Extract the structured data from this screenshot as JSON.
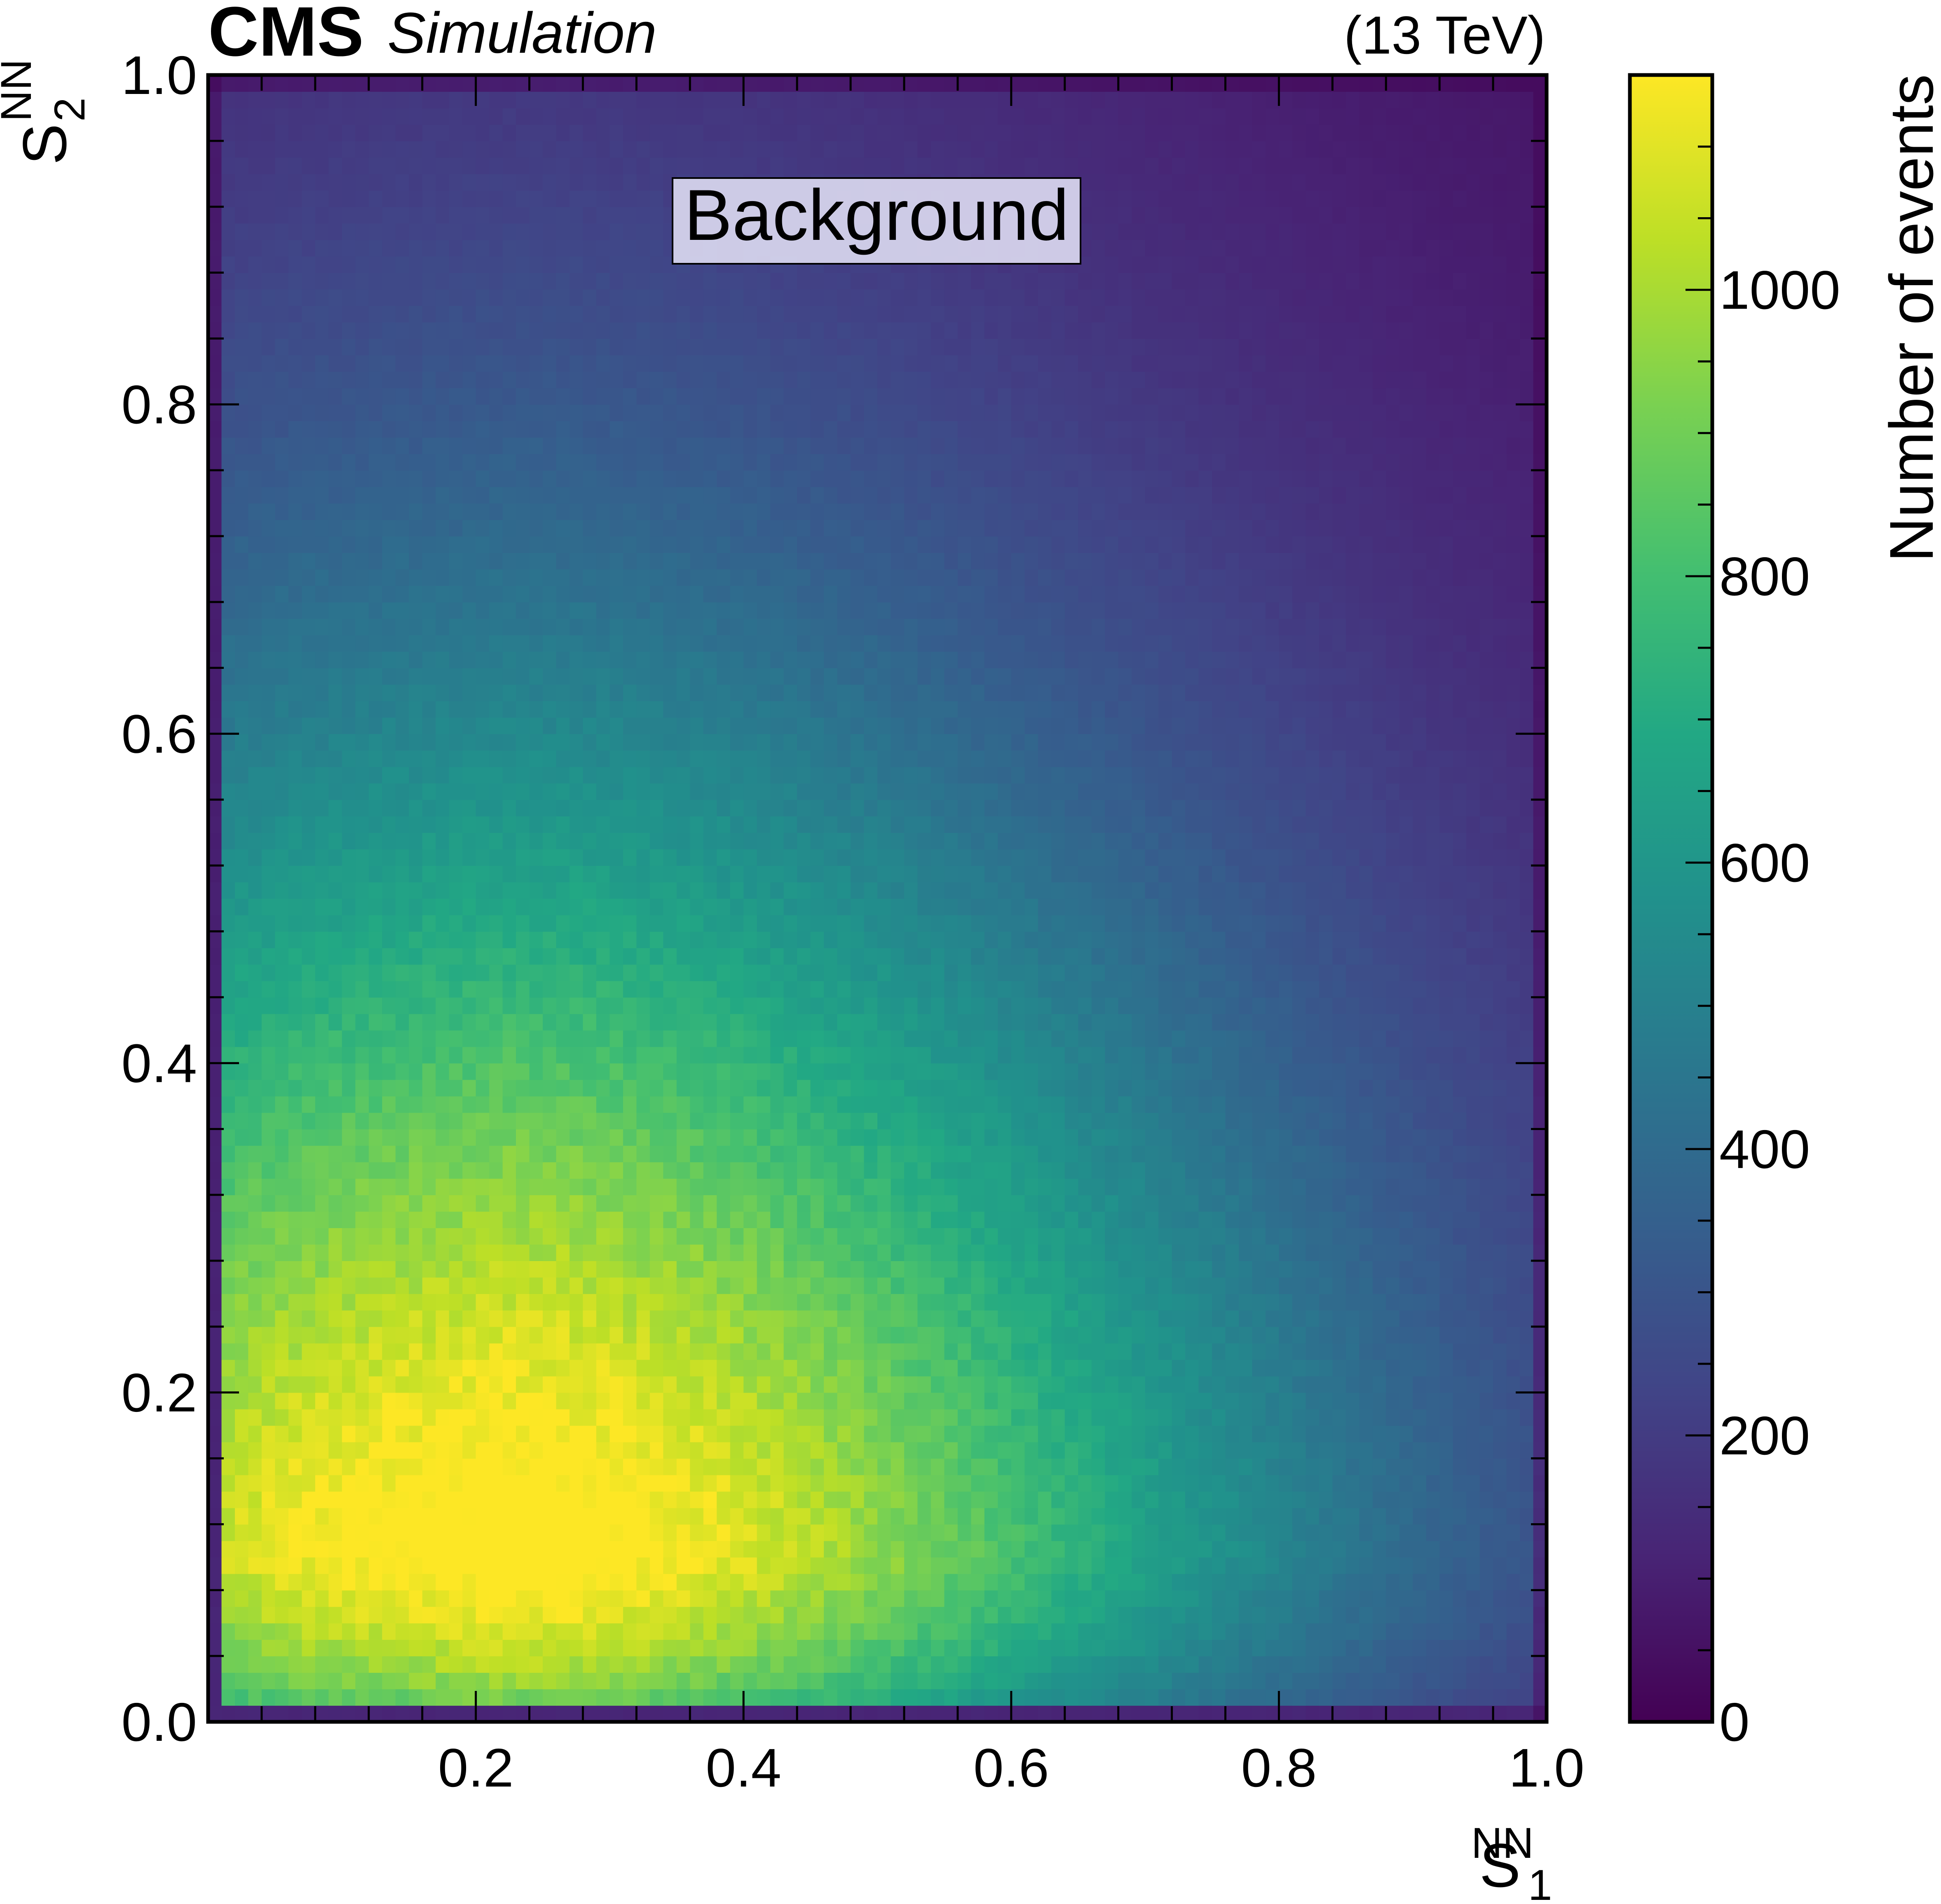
{
  "header": {
    "experiment": "CMS",
    "tag": "Simulation",
    "energy": "(13 TeV)"
  },
  "chart_data": {
    "type": "heatmap",
    "title": "",
    "annotation": "Background",
    "xlabel": {
      "base": "S",
      "sub": "1",
      "sup": "NN"
    },
    "ylabel": {
      "base": "S",
      "sub": "2",
      "sup": "NN"
    },
    "xlim": [
      0.0,
      1.0
    ],
    "ylim": [
      0.0,
      1.0
    ],
    "x_ticks": [
      "0.2",
      "0.4",
      "0.6",
      "0.8",
      "1.0"
    ],
    "y_ticks": [
      "0.0",
      "0.2",
      "0.4",
      "0.6",
      "0.8",
      "1.0"
    ],
    "colorbar": {
      "label": "Number of events",
      "range": [
        0,
        1150
      ],
      "ticks": [
        "0",
        "200",
        "400",
        "600",
        "800",
        "1000"
      ],
      "colormap": "viridis"
    },
    "bins": {
      "nx": 100,
      "ny": 100
    },
    "density_model": {
      "peak": {
        "x": 0.22,
        "y": 0.1,
        "value": 1140
      },
      "description_values": [
        {
          "x": 0.22,
          "y": 0.1,
          "value": 1140
        },
        {
          "x": 0.5,
          "y": 0.1,
          "value": 1000
        },
        {
          "x": 0.8,
          "y": 0.1,
          "value": 520
        },
        {
          "x": 0.95,
          "y": 0.1,
          "value": 420
        },
        {
          "x": 0.2,
          "y": 0.4,
          "value": 900
        },
        {
          "x": 0.2,
          "y": 0.6,
          "value": 650
        },
        {
          "x": 0.2,
          "y": 0.9,
          "value": 330
        },
        {
          "x": 0.9,
          "y": 0.9,
          "value": 110
        },
        {
          "x": 0.6,
          "y": 0.5,
          "value": 420
        },
        {
          "x": 0.0,
          "y": 0.0,
          "value": 100
        }
      ]
    }
  }
}
